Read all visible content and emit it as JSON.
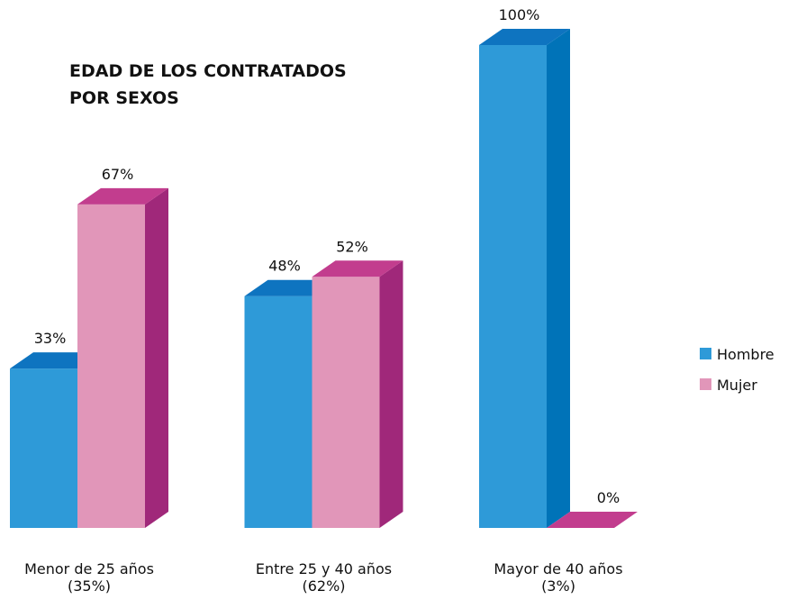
{
  "chart_data": {
    "type": "bar3d",
    "title": "EDAD DE LOS CONTRATADOS\nPOR SEXOS",
    "categories": [
      "Menor de 25 años\n(35%)",
      "Entre 25 y 40 años\n(62%)",
      "Mayor de 40 años\n(3%)"
    ],
    "series": [
      {
        "name": "Hombre",
        "color": "#2e9ad8",
        "values": [
          33,
          48,
          100
        ],
        "value_labels": [
          "33%",
          "48%",
          "100%"
        ]
      },
      {
        "name": "Mujer",
        "color": "#e196b9",
        "values": [
          67,
          52,
          0
        ],
        "value_labels": [
          "67%",
          "52%",
          "0%"
        ]
      }
    ],
    "legend": "right"
  }
}
